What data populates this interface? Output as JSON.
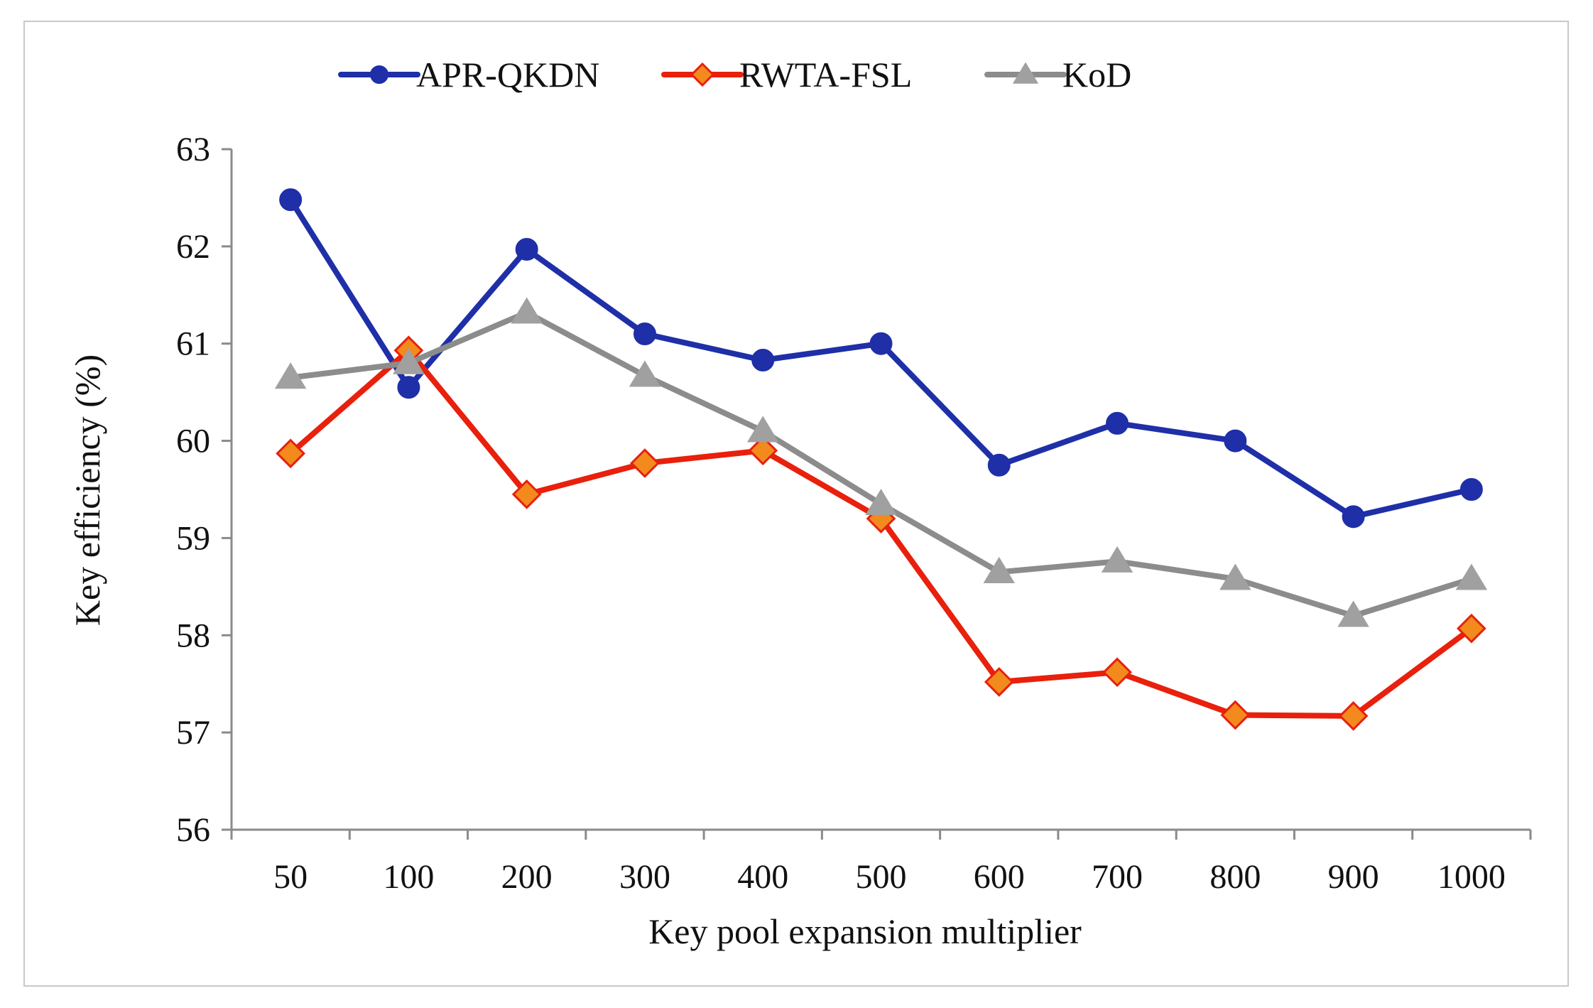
{
  "chart_data": {
    "type": "line",
    "title": "",
    "xlabel": "Key pool expansion multiplier",
    "ylabel": "Key efficiency (%)",
    "categories": [
      "50",
      "100",
      "200",
      "300",
      "400",
      "500",
      "600",
      "700",
      "800",
      "900",
      "1000"
    ],
    "ylim": [
      56,
      63
    ],
    "yticks": [
      56,
      57,
      58,
      59,
      60,
      61,
      62,
      63
    ],
    "grid": false,
    "legend_position": "top",
    "series": [
      {
        "name": "APR-QKDN",
        "color": "#1f2fa8",
        "marker": "circle",
        "values": [
          62.48,
          60.55,
          61.97,
          61.1,
          60.83,
          61.0,
          59.75,
          60.18,
          60.0,
          59.22,
          59.5
        ]
      },
      {
        "name": "RWTA-FSL",
        "color": "#e8200c",
        "marker_fill": "#f28a1e",
        "marker": "diamond",
        "values": [
          59.87,
          60.93,
          59.45,
          59.77,
          59.9,
          59.2,
          57.52,
          57.62,
          57.18,
          57.17,
          58.07
        ]
      },
      {
        "name": "KoD",
        "color": "#8c8c8c",
        "marker_fill": "#a0a0a0",
        "marker": "triangle",
        "values": [
          60.65,
          60.8,
          61.32,
          60.67,
          60.1,
          59.35,
          58.65,
          58.76,
          58.58,
          58.2,
          58.58
        ]
      }
    ]
  }
}
